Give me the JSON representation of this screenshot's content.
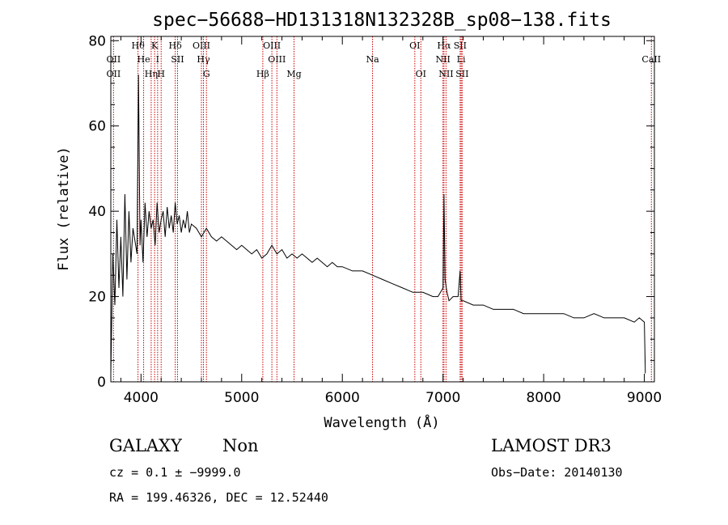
{
  "chart_data": {
    "type": "line",
    "title": "spec−56688−HD131318N132328B_sp08−138.fits",
    "xlabel": "Wavelength (Å)",
    "ylabel": "Flux (relative)",
    "xlim": [
      3700,
      9100
    ],
    "ylim": [
      0,
      81
    ],
    "xticks": [
      4000,
      5000,
      6000,
      7000,
      8000,
      9000
    ],
    "yticks": [
      0,
      20,
      40,
      60,
      80
    ],
    "grid": false,
    "series": [
      {
        "x": [
          3700,
          3720,
          3740,
          3760,
          3780,
          3800,
          3820,
          3840,
          3860,
          3880,
          3900,
          3920,
          3940,
          3960,
          3975,
          3990,
          4000,
          4020,
          4040,
          4060,
          4080,
          4100,
          4120,
          4140,
          4160,
          4180,
          4200,
          4220,
          4240,
          4260,
          4280,
          4300,
          4320,
          4340,
          4360,
          4380,
          4400,
          4420,
          4440,
          4460,
          4480,
          4500,
          4550,
          4600,
          4650,
          4700,
          4750,
          4800,
          4850,
          4900,
          4950,
          5000,
          5050,
          5100,
          5150,
          5200,
          5250,
          5300,
          5350,
          5400,
          5450,
          5500,
          5550,
          5600,
          5650,
          5700,
          5750,
          5800,
          5850,
          5900,
          5950,
          6000,
          6100,
          6200,
          6300,
          6400,
          6500,
          6600,
          6700,
          6800,
          6900,
          6950,
          7000,
          7010,
          7020,
          7040,
          7060,
          7100,
          7150,
          7170,
          7180,
          7200,
          7300,
          7400,
          7500,
          7600,
          7700,
          7800,
          7900,
          8000,
          8100,
          8200,
          8300,
          8400,
          8500,
          8600,
          8700,
          8800,
          8900,
          8950,
          9000,
          9010
        ],
        "y": [
          2,
          30,
          18,
          38,
          22,
          34,
          20,
          44,
          24,
          40,
          28,
          36,
          33,
          30,
          72,
          32,
          38,
          28,
          42,
          34,
          40,
          36,
          38,
          32,
          42,
          35,
          38,
          40,
          34,
          41,
          36,
          39,
          35,
          42,
          37,
          39,
          35,
          38,
          36,
          40,
          35,
          37,
          36,
          34,
          36,
          34,
          33,
          34,
          33,
          32,
          31,
          32,
          31,
          30,
          31,
          29,
          30,
          32,
          30,
          31,
          29,
          30,
          29,
          30,
          29,
          28,
          29,
          28,
          27,
          28,
          27,
          27,
          26,
          26,
          25,
          24,
          23,
          22,
          21,
          21,
          20,
          20,
          22,
          44,
          24,
          21,
          19,
          20,
          20,
          26,
          19,
          19,
          18,
          18,
          17,
          17,
          17,
          16,
          16,
          16,
          16,
          16,
          15,
          15,
          16,
          15,
          15,
          15,
          14,
          15,
          14,
          2
        ]
      }
    ],
    "line_markers": [
      {
        "label": "OII",
        "x": 3727,
        "row": 1
      },
      {
        "label": "OII",
        "x": 3727,
        "row": 2
      },
      {
        "label": "Hθ",
        "x": 3970,
        "row": 0
      },
      {
        "label": "He",
        "x": 4026,
        "row": 1
      },
      {
        "label": "Hη",
        "x": 4101,
        "row": 2
      },
      {
        "label": "K",
        "x": 4135,
        "row": 0
      },
      {
        "label": "I",
        "x": 4165,
        "row": 1
      },
      {
        "label": "H",
        "x": 4200,
        "row": 2
      },
      {
        "label": "Hδ",
        "x": 4340,
        "row": 0
      },
      {
        "label": "SII",
        "x": 4363,
        "row": 1
      },
      {
        "label": "OIII",
        "x": 4600,
        "row": 0
      },
      {
        "label": "Hγ",
        "x": 4620,
        "row": 1
      },
      {
        "label": "G",
        "x": 4650,
        "row": 2
      },
      {
        "label": "Hβ",
        "x": 5210,
        "row": 2
      },
      {
        "label": "OIII",
        "x": 5300,
        "row": 0
      },
      {
        "label": "OIII",
        "x": 5350,
        "row": 1
      },
      {
        "label": "Mg",
        "x": 5520,
        "row": 2
      },
      {
        "label": "Na",
        "x": 6300,
        "row": 1
      },
      {
        "label": "OI",
        "x": 6720,
        "row": 0
      },
      {
        "label": "OI",
        "x": 6780,
        "row": 2
      },
      {
        "label": "Hα",
        "x": 7010,
        "row": 0
      },
      {
        "label": "NII",
        "x": 7000,
        "row": 1
      },
      {
        "label": "NII",
        "x": 7030,
        "row": 2
      },
      {
        "label": "SII",
        "x": 7170,
        "row": 0
      },
      {
        "label": "Li",
        "x": 7180,
        "row": 1
      },
      {
        "label": "SII",
        "x": 7190,
        "row": 2
      },
      {
        "label": "CaII",
        "x": 9070,
        "row": 1
      }
    ]
  },
  "info": {
    "class": "GALAXY",
    "subclass": "Non",
    "survey": "LAMOST DR3",
    "cz": "cz = 0.1 ± −9999.0",
    "obs_date": "Obs−Date: 20140130",
    "radec": "RA = 199.46326, DEC =  12.52440"
  },
  "colors": {
    "spectrum": "#000000",
    "markers": "#cc0000",
    "axes": "#000000"
  }
}
